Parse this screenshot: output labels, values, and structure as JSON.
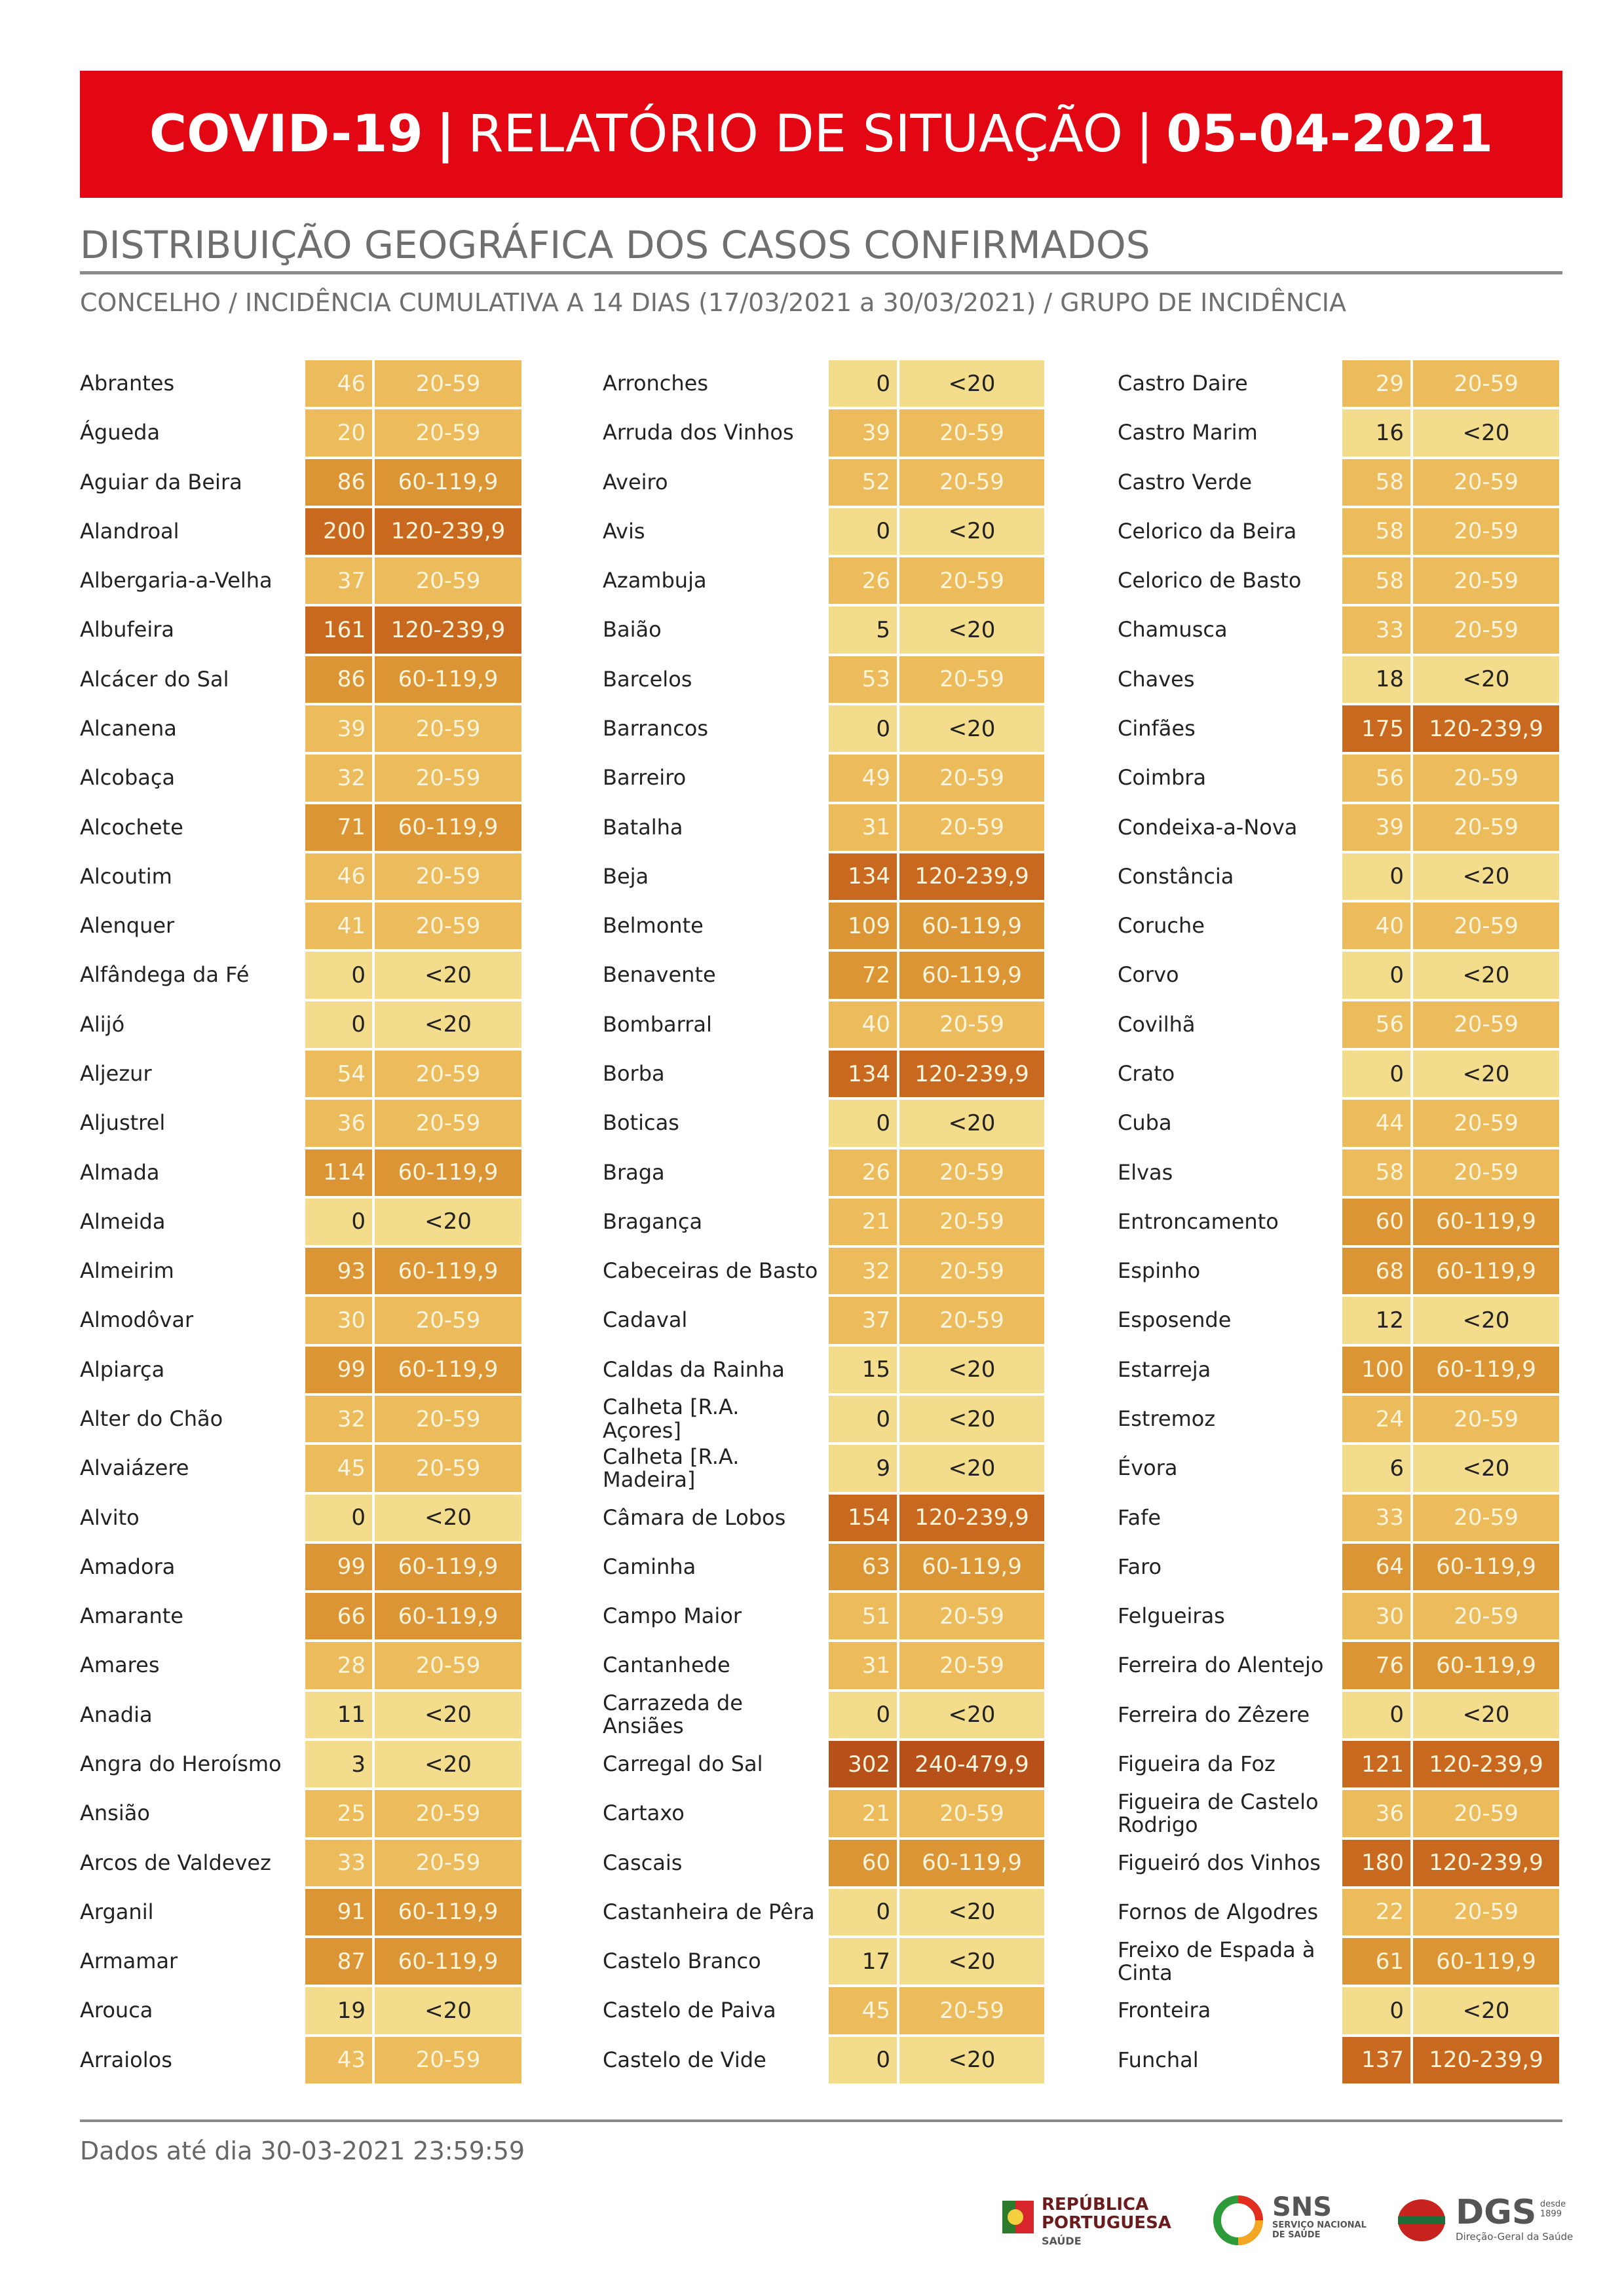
{
  "header": {
    "title_parts": [
      "COVID-19",
      "|",
      "RELATÓRIO DE SITUAÇÃO",
      "|",
      "05-04-2021"
    ]
  },
  "section": {
    "title": "DISTRIBUIÇÃO GEOGRÁFICA DOS CASOS CONFIRMADOS",
    "subtitle": "CONCELHO / INCIDÊNCIA CUMULATIVA A 14 DIAS (17/03/2021 a 30/03/2021) / GRUPO DE INCIDÊNCIA"
  },
  "group_colors": {
    "<20": "#f3dc8b",
    "20-59": "#ebbb5c",
    "60-119,9": "#db9535",
    "120-239,9": "#c9691f",
    "240-479,9": "#b8501a"
  },
  "columns": [
    {
      "rows": [
        [
          "Abrantes",
          46,
          "20-59"
        ],
        [
          "Águeda",
          20,
          "20-59"
        ],
        [
          "Aguiar da Beira",
          86,
          "60-119,9"
        ],
        [
          "Alandroal",
          200,
          "120-239,9"
        ],
        [
          "Albergaria-a-Velha",
          37,
          "20-59"
        ],
        [
          "Albufeira",
          161,
          "120-239,9"
        ],
        [
          "Alcácer do Sal",
          86,
          "60-119,9"
        ],
        [
          "Alcanena",
          39,
          "20-59"
        ],
        [
          "Alcobaça",
          32,
          "20-59"
        ],
        [
          "Alcochete",
          71,
          "60-119,9"
        ],
        [
          "Alcoutim",
          46,
          "20-59"
        ],
        [
          "Alenquer",
          41,
          "20-59"
        ],
        [
          "Alfândega da Fé",
          0,
          "<20"
        ],
        [
          "Alijó",
          0,
          "<20"
        ],
        [
          "Aljezur",
          54,
          "20-59"
        ],
        [
          "Aljustrel",
          36,
          "20-59"
        ],
        [
          "Almada",
          114,
          "60-119,9"
        ],
        [
          "Almeida",
          0,
          "<20"
        ],
        [
          "Almeirim",
          93,
          "60-119,9"
        ],
        [
          "Almodôvar",
          30,
          "20-59"
        ],
        [
          "Alpiarça",
          99,
          "60-119,9"
        ],
        [
          "Alter do Chão",
          32,
          "20-59"
        ],
        [
          "Alvaiázere",
          45,
          "20-59"
        ],
        [
          "Alvito",
          0,
          "<20"
        ],
        [
          "Amadora",
          99,
          "60-119,9"
        ],
        [
          "Amarante",
          66,
          "60-119,9"
        ],
        [
          "Amares",
          28,
          "20-59"
        ],
        [
          "Anadia",
          11,
          "<20"
        ],
        [
          "Angra do Heroísmo",
          3,
          "<20"
        ],
        [
          "Ansião",
          25,
          "20-59"
        ],
        [
          "Arcos de Valdevez",
          33,
          "20-59"
        ],
        [
          "Arganil",
          91,
          "60-119,9"
        ],
        [
          "Armamar",
          87,
          "60-119,9"
        ],
        [
          "Arouca",
          19,
          "<20"
        ],
        [
          "Arraiolos",
          43,
          "20-59"
        ]
      ]
    },
    {
      "rows": [
        [
          "Arronches",
          0,
          "<20"
        ],
        [
          "Arruda dos Vinhos",
          39,
          "20-59"
        ],
        [
          "Aveiro",
          52,
          "20-59"
        ],
        [
          "Avis",
          0,
          "<20"
        ],
        [
          "Azambuja",
          26,
          "20-59"
        ],
        [
          "Baião",
          5,
          "<20"
        ],
        [
          "Barcelos",
          53,
          "20-59"
        ],
        [
          "Barrancos",
          0,
          "<20"
        ],
        [
          "Barreiro",
          49,
          "20-59"
        ],
        [
          "Batalha",
          31,
          "20-59"
        ],
        [
          "Beja",
          134,
          "120-239,9"
        ],
        [
          "Belmonte",
          109,
          "60-119,9"
        ],
        [
          "Benavente",
          72,
          "60-119,9"
        ],
        [
          "Bombarral",
          40,
          "20-59"
        ],
        [
          "Borba",
          134,
          "120-239,9"
        ],
        [
          "Boticas",
          0,
          "<20"
        ],
        [
          "Braga",
          26,
          "20-59"
        ],
        [
          "Bragança",
          21,
          "20-59"
        ],
        [
          "Cabeceiras de Basto",
          32,
          "20-59"
        ],
        [
          "Cadaval",
          37,
          "20-59"
        ],
        [
          "Caldas da Rainha",
          15,
          "<20"
        ],
        [
          "Calheta [R.A. Açores]",
          0,
          "<20"
        ],
        [
          "Calheta [R.A. Madeira]",
          9,
          "<20"
        ],
        [
          "Câmara de Lobos",
          154,
          "120-239,9"
        ],
        [
          "Caminha",
          63,
          "60-119,9"
        ],
        [
          "Campo Maior",
          51,
          "20-59"
        ],
        [
          "Cantanhede",
          31,
          "20-59"
        ],
        [
          "Carrazeda de Ansiães",
          0,
          "<20"
        ],
        [
          "Carregal do Sal",
          302,
          "240-479,9"
        ],
        [
          "Cartaxo",
          21,
          "20-59"
        ],
        [
          "Cascais",
          60,
          "60-119,9"
        ],
        [
          "Castanheira de Pêra",
          0,
          "<20"
        ],
        [
          "Castelo Branco",
          17,
          "<20"
        ],
        [
          "Castelo de Paiva",
          45,
          "20-59"
        ],
        [
          "Castelo de Vide",
          0,
          "<20"
        ]
      ]
    },
    {
      "rows": [
        [
          "Castro Daire",
          29,
          "20-59"
        ],
        [
          "Castro Marim",
          16,
          "<20"
        ],
        [
          "Castro Verde",
          58,
          "20-59"
        ],
        [
          "Celorico da Beira",
          58,
          "20-59"
        ],
        [
          "Celorico de Basto",
          58,
          "20-59"
        ],
        [
          "Chamusca",
          33,
          "20-59"
        ],
        [
          "Chaves",
          18,
          "<20"
        ],
        [
          "Cinfães",
          175,
          "120-239,9"
        ],
        [
          "Coimbra",
          56,
          "20-59"
        ],
        [
          "Condeixa-a-Nova",
          39,
          "20-59"
        ],
        [
          "Constância",
          0,
          "<20"
        ],
        [
          "Coruche",
          40,
          "20-59"
        ],
        [
          "Corvo",
          0,
          "<20"
        ],
        [
          "Covilhã",
          56,
          "20-59"
        ],
        [
          "Crato",
          0,
          "<20"
        ],
        [
          "Cuba",
          44,
          "20-59"
        ],
        [
          "Elvas",
          58,
          "20-59"
        ],
        [
          "Entroncamento",
          60,
          "60-119,9"
        ],
        [
          "Espinho",
          68,
          "60-119,9"
        ],
        [
          "Esposende",
          12,
          "<20"
        ],
        [
          "Estarreja",
          100,
          "60-119,9"
        ],
        [
          "Estremoz",
          24,
          "20-59"
        ],
        [
          "Évora",
          6,
          "<20"
        ],
        [
          "Fafe",
          33,
          "20-59"
        ],
        [
          "Faro",
          64,
          "60-119,9"
        ],
        [
          "Felgueiras",
          30,
          "20-59"
        ],
        [
          "Ferreira do Alentejo",
          76,
          "60-119,9"
        ],
        [
          "Ferreira do Zêzere",
          0,
          "<20"
        ],
        [
          "Figueira da Foz",
          121,
          "120-239,9"
        ],
        [
          "Figueira de Castelo Rodrigo",
          36,
          "20-59"
        ],
        [
          "Figueiró dos Vinhos",
          180,
          "120-239,9"
        ],
        [
          "Fornos de Algodres",
          22,
          "20-59"
        ],
        [
          "Freixo de Espada à Cinta",
          61,
          "60-119,9"
        ],
        [
          "Fronteira",
          0,
          "<20"
        ],
        [
          "Funchal",
          137,
          "120-239,9"
        ]
      ]
    }
  ],
  "footer": {
    "text": "Dados até dia 30-03-2021 23:59:59"
  },
  "logos": {
    "republica": [
      "REPÚBLICA",
      "PORTUGUESA",
      "SAÚDE"
    ],
    "sns": [
      "SNS",
      "SERVIÇO NACIONAL",
      "DE SAÚDE"
    ],
    "dgs": [
      "DGS",
      "desde",
      "1899",
      "Direção-Geral da Saúde"
    ]
  }
}
